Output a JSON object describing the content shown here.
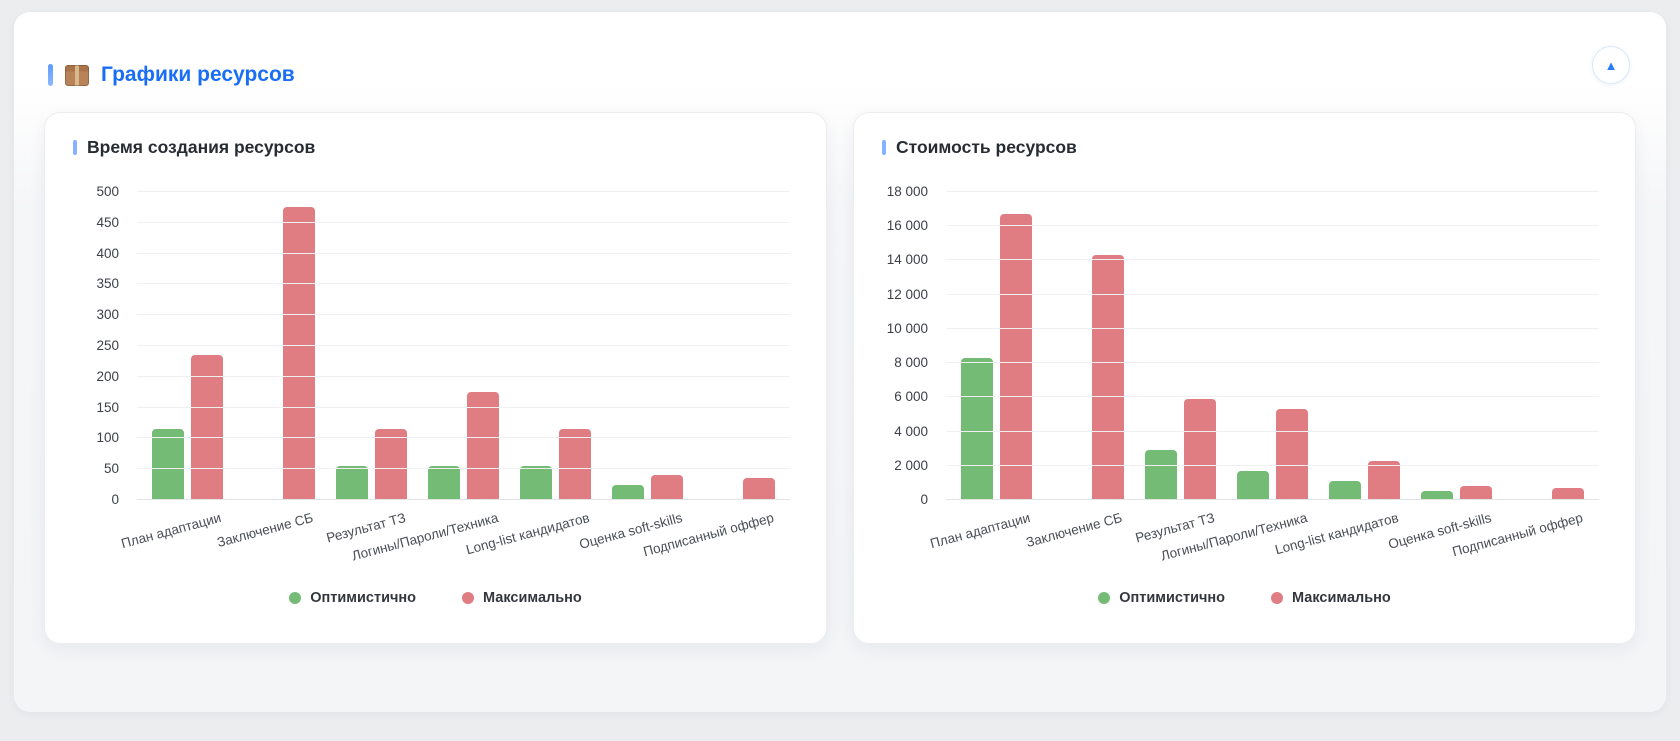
{
  "header": {
    "icon": "package-icon",
    "title": "Графики ресурсов",
    "collapse_button_icon": "▲"
  },
  "colors": {
    "title_blue": "#1a6ef5",
    "optimistic_green": "#74bb76",
    "maximum_red": "#e07d82",
    "page_background": "#ebedef",
    "card_background": "#ffffff"
  },
  "chart_data": [
    {
      "type": "bar",
      "title": "Время создания ресурсов",
      "categories": [
        "План адаптации",
        "Заключение СБ",
        "Результат ТЗ",
        "Логины/Пароли/Техника",
        "Long-list кандидатов",
        "Оценка soft-skills",
        "Подписанный оффер"
      ],
      "series": [
        {
          "name": "Оптимистично",
          "color": "#74bb76",
          "values": [
            115,
            0,
            55,
            55,
            55,
            25,
            0
          ]
        },
        {
          "name": "Максимально",
          "color": "#e07d82",
          "values": [
            235,
            475,
            115,
            175,
            115,
            40,
            35
          ]
        }
      ],
      "ylim": [
        0,
        500
      ],
      "yticks": [
        0,
        50,
        100,
        150,
        200,
        250,
        300,
        350,
        400,
        450,
        500
      ],
      "ytick_labels": [
        "0",
        "50",
        "100",
        "150",
        "200",
        "250",
        "300",
        "350",
        "400",
        "450",
        "500"
      ],
      "grid": true,
      "legend_position": "bottom"
    },
    {
      "type": "bar",
      "title": "Стоимость ресурсов",
      "categories": [
        "План адаптации",
        "Заключение СБ",
        "Результат ТЗ",
        "Логины/Пароли/Техника",
        "Long-list кандидатов",
        "Оценка soft-skills",
        "Подписанный оффер"
      ],
      "series": [
        {
          "name": "Оптимистично",
          "color": "#74bb76",
          "values": [
            8300,
            0,
            2900,
            1700,
            1100,
            500,
            0
          ]
        },
        {
          "name": "Максимально",
          "color": "#e07d82",
          "values": [
            16700,
            14300,
            5900,
            5300,
            2300,
            800,
            700
          ]
        }
      ],
      "ylim": [
        0,
        18000
      ],
      "yticks": [
        0,
        2000,
        4000,
        6000,
        8000,
        10000,
        12000,
        14000,
        16000,
        18000
      ],
      "ytick_labels": [
        "0",
        "2 000",
        "4 000",
        "6 000",
        "8 000",
        "10 000",
        "12 000",
        "14 000",
        "16 000",
        "18 000"
      ],
      "grid": true,
      "legend_position": "bottom"
    }
  ]
}
